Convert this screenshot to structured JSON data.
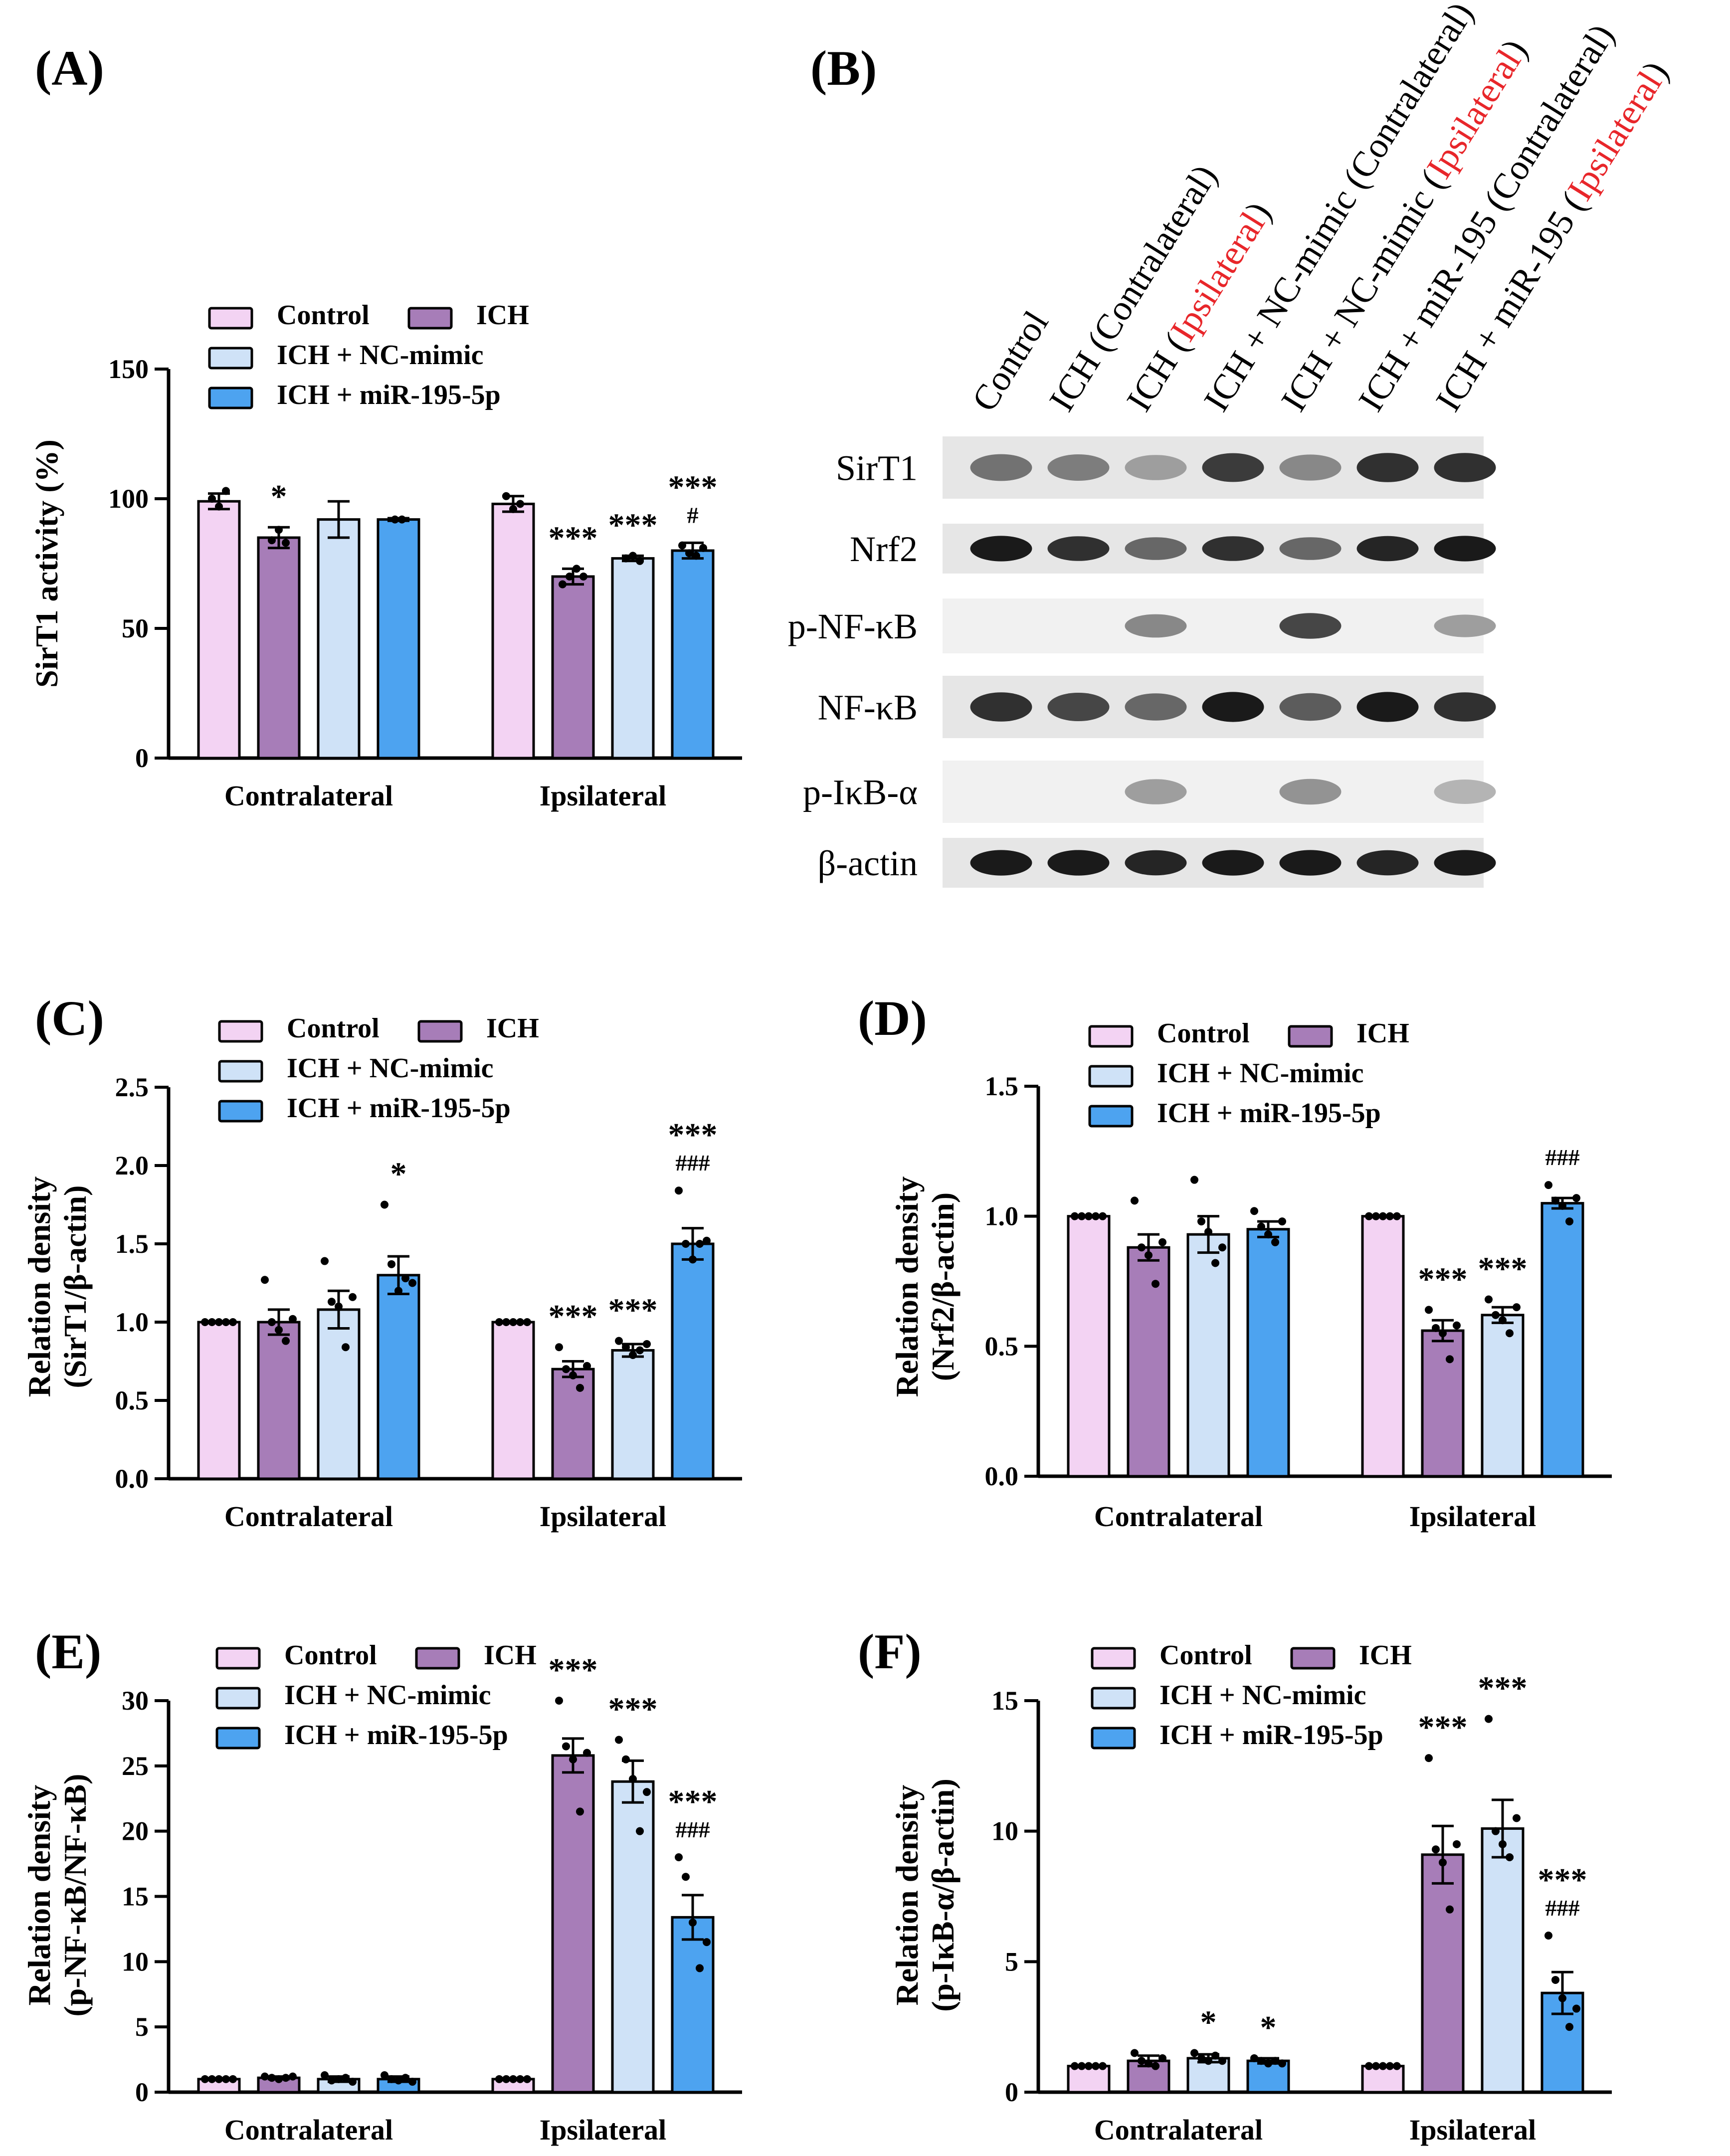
{
  "colors": {
    "control": "#f3d3f3",
    "ich": "#a77db8",
    "nc": "#cfe2f7",
    "mir": "#4da3f0",
    "red": "#e8262a",
    "black": "#000000"
  },
  "legend_labels": [
    "Control",
    "ICH",
    "ICH + NC-mimic",
    "ICH + miR-195-5p"
  ],
  "groups": [
    "Contralateral",
    "Ipsilateral"
  ],
  "chart_data": [
    {
      "panel": "(A)",
      "type": "bar",
      "ylabel": [
        "SirT1 activity (%)"
      ],
      "ylim": [
        0,
        150
      ],
      "yticks": [
        0,
        50,
        100,
        150
      ],
      "yticklabels": [
        "0",
        "50",
        "100",
        "150"
      ],
      "categories": [
        "Contralateral",
        "Ipsilateral"
      ],
      "series": [
        {
          "name": "Control",
          "values": [
            99,
            98
          ],
          "errors": [
            3,
            3
          ]
        },
        {
          "name": "ICH",
          "values": [
            85,
            70
          ],
          "errors": [
            4,
            3
          ]
        },
        {
          "name": "ICH + NC-mimic",
          "values": [
            92,
            77
          ],
          "errors": [
            7,
            1
          ]
        },
        {
          "name": "ICH + miR-195-5p",
          "values": [
            92,
            80
          ],
          "errors": [
            0.5,
            3
          ]
        }
      ],
      "points": [
        [
          [
            100,
            97,
            103
          ],
          [
            101,
            96,
            98
          ]
        ],
        [
          [
            84,
            88,
            83
          ],
          [
            67,
            70,
            73,
            70
          ]
        ],
        [
          [],
          [
            77,
            78,
            76
          ]
        ],
        [
          [
            92,
            92
          ],
          [
            82,
            79,
            78,
            81
          ]
        ]
      ],
      "annotations": [
        {
          "series": 1,
          "group": 0,
          "lines": [
            "*"
          ]
        },
        {
          "series": 1,
          "group": 1,
          "lines": [
            "***"
          ]
        },
        {
          "series": 2,
          "group": 1,
          "lines": [
            "***"
          ]
        },
        {
          "series": 3,
          "group": 1,
          "lines": [
            "***",
            "#"
          ]
        }
      ]
    },
    {
      "panel": "(C)",
      "type": "bar",
      "ylabel": [
        "Relation density",
        "(SirT1/β-actin)"
      ],
      "ylim": [
        0,
        2.5
      ],
      "yticks": [
        0,
        0.5,
        1.0,
        1.5,
        2.0,
        2.5
      ],
      "yticklabels": [
        "0.0",
        "0.5",
        "1.0",
        "1.5",
        "2.0",
        "2.5"
      ],
      "categories": [
        "Contralateral",
        "Ipsilateral"
      ],
      "series": [
        {
          "name": "Control",
          "values": [
            1.0,
            1.0
          ],
          "errors": [
            0,
            0
          ]
        },
        {
          "name": "ICH",
          "values": [
            1.0,
            0.7
          ],
          "errors": [
            0.08,
            0.05
          ]
        },
        {
          "name": "ICH + NC-mimic",
          "values": [
            1.08,
            0.82
          ],
          "errors": [
            0.12,
            0.04
          ]
        },
        {
          "name": "ICH + miR-195-5p",
          "values": [
            1.3,
            1.5
          ],
          "errors": [
            0.12,
            0.1
          ]
        }
      ],
      "points": [
        [
          [
            1,
            1,
            1,
            1,
            1
          ],
          [
            1,
            1,
            1,
            1,
            1
          ]
        ],
        [
          [
            1.27,
            1.0,
            0.95,
            0.88,
            1.02
          ],
          [
            0.84,
            0.7,
            0.66,
            0.58,
            0.72
          ]
        ],
        [
          [
            1.39,
            1.13,
            1.1,
            0.84,
            1.16
          ],
          [
            0.88,
            0.84,
            0.79,
            0.82,
            0.86
          ]
        ],
        [
          [
            1.75,
            1.37,
            1.2,
            1.28,
            1.25
          ],
          [
            1.84,
            1.5,
            1.4,
            1.5,
            1.52
          ]
        ]
      ],
      "annotations": [
        {
          "series": 3,
          "group": 0,
          "lines": [
            "*"
          ]
        },
        {
          "series": 1,
          "group": 1,
          "lines": [
            "***"
          ]
        },
        {
          "series": 2,
          "group": 1,
          "lines": [
            "***"
          ]
        },
        {
          "series": 3,
          "group": 1,
          "lines": [
            "***",
            "###"
          ]
        }
      ]
    },
    {
      "panel": "(D)",
      "type": "bar",
      "ylabel": [
        "Relation density",
        "(Nrf2/β-actin)"
      ],
      "ylim": [
        0,
        1.5
      ],
      "yticks": [
        0,
        0.5,
        1.0,
        1.5
      ],
      "yticklabels": [
        "0.0",
        "0.5",
        "1.0",
        "1.5"
      ],
      "categories": [
        "Contralateral",
        "Ipsilateral"
      ],
      "series": [
        {
          "name": "Control",
          "values": [
            1.0,
            1.0
          ],
          "errors": [
            0,
            0
          ]
        },
        {
          "name": "ICH",
          "values": [
            0.88,
            0.56
          ],
          "errors": [
            0.05,
            0.04
          ]
        },
        {
          "name": "ICH + NC-mimic",
          "values": [
            0.93,
            0.62
          ],
          "errors": [
            0.07,
            0.03
          ]
        },
        {
          "name": "ICH + miR-195-5p",
          "values": [
            0.95,
            1.05
          ],
          "errors": [
            0.03,
            0.02
          ]
        }
      ],
      "points": [
        [
          [
            1,
            1,
            1,
            1,
            1
          ],
          [
            1,
            1,
            1,
            1,
            1
          ]
        ],
        [
          [
            1.06,
            0.88,
            0.85,
            0.74,
            0.9
          ],
          [
            0.64,
            0.57,
            0.55,
            0.45,
            0.58
          ]
        ],
        [
          [
            1.14,
            0.98,
            0.94,
            0.82,
            0.88
          ],
          [
            0.68,
            0.62,
            0.6,
            0.55,
            0.65
          ]
        ],
        [
          [
            1.02,
            0.96,
            0.93,
            0.9,
            0.98
          ],
          [
            1.12,
            1.06,
            1.04,
            0.98,
            1.07
          ]
        ]
      ],
      "annotations": [
        {
          "series": 1,
          "group": 1,
          "lines": [
            "***"
          ]
        },
        {
          "series": 2,
          "group": 1,
          "lines": [
            "***"
          ]
        },
        {
          "series": 3,
          "group": 1,
          "lines": [
            "###"
          ]
        }
      ]
    },
    {
      "panel": "(E)",
      "type": "bar",
      "ylabel": [
        "Relation density",
        "(p-NF-κB/NF-κB)"
      ],
      "ylim": [
        0,
        30
      ],
      "yticks": [
        0,
        5,
        10,
        15,
        20,
        25,
        30
      ],
      "yticklabels": [
        "0",
        "5",
        "10",
        "15",
        "20",
        "25",
        "30"
      ],
      "categories": [
        "Contralateral",
        "Ipsilateral"
      ],
      "series": [
        {
          "name": "Control",
          "values": [
            1.0,
            1.0
          ],
          "errors": [
            0,
            0
          ]
        },
        {
          "name": "ICH",
          "values": [
            1.1,
            25.8
          ],
          "errors": [
            0.1,
            1.3
          ]
        },
        {
          "name": "ICH + NC-mimic",
          "values": [
            1.0,
            23.8
          ],
          "errors": [
            0.2,
            1.6
          ]
        },
        {
          "name": "ICH + miR-195-5p",
          "values": [
            1.0,
            13.4
          ],
          "errors": [
            0.2,
            1.7
          ]
        }
      ],
      "points": [
        [
          [
            1,
            1,
            1,
            1,
            1
          ],
          [
            1,
            1,
            1,
            1,
            1
          ]
        ],
        [
          [
            1.2,
            1.1,
            1.0,
            1.1,
            1.2
          ],
          [
            30.0,
            26.5,
            25.5,
            21.5,
            26.0
          ]
        ],
        [
          [
            1.3,
            0.9,
            1.0,
            1.1,
            0.8
          ],
          [
            27.0,
            25.5,
            24.0,
            20.0,
            23.0
          ]
        ],
        [
          [
            1.3,
            1.0,
            0.9,
            1.1,
            0.8
          ],
          [
            18.0,
            16.5,
            13.0,
            9.5,
            11.5
          ]
        ]
      ],
      "annotations": [
        {
          "series": 1,
          "group": 1,
          "lines": [
            "***"
          ]
        },
        {
          "series": 2,
          "group": 1,
          "lines": [
            "***"
          ]
        },
        {
          "series": 3,
          "group": 1,
          "lines": [
            "***",
            "###"
          ]
        }
      ]
    },
    {
      "panel": "(F)",
      "type": "bar",
      "ylabel": [
        "Relation density",
        "(p-IκB-α/β-actin)"
      ],
      "ylim": [
        0,
        15
      ],
      "yticks": [
        0,
        5,
        10,
        15
      ],
      "yticklabels": [
        "0",
        "5",
        "10",
        "15"
      ],
      "categories": [
        "Contralateral",
        "Ipsilateral"
      ],
      "series": [
        {
          "name": "Control",
          "values": [
            1.0,
            1.0
          ],
          "errors": [
            0,
            0
          ]
        },
        {
          "name": "ICH",
          "values": [
            1.2,
            9.1
          ],
          "errors": [
            0.2,
            1.1
          ]
        },
        {
          "name": "ICH + NC-mimic",
          "values": [
            1.3,
            10.1
          ],
          "errors": [
            0.15,
            1.1
          ]
        },
        {
          "name": "ICH + miR-195-5p",
          "values": [
            1.2,
            3.8
          ],
          "errors": [
            0.1,
            0.8
          ]
        }
      ],
      "points": [
        [
          [
            1,
            1,
            1,
            1,
            1
          ],
          [
            1,
            1,
            1,
            1,
            1
          ]
        ],
        [
          [
            1.5,
            1.2,
            1.1,
            1.0,
            1.3
          ],
          [
            12.8,
            9.3,
            8.8,
            7.0,
            9.5
          ]
        ],
        [
          [
            1.5,
            1.3,
            1.2,
            1.4,
            1.2
          ],
          [
            14.3,
            10.0,
            9.5,
            9.0,
            10.5
          ]
        ],
        [
          [
            1.3,
            1.2,
            1.1,
            1.2,
            1.1
          ],
          [
            6.0,
            4.3,
            3.6,
            2.5,
            3.2
          ]
        ]
      ],
      "annotations": [
        {
          "series": 2,
          "group": 0,
          "lines": [
            "*"
          ]
        },
        {
          "series": 3,
          "group": 0,
          "lines": [
            "*"
          ]
        },
        {
          "series": 1,
          "group": 1,
          "lines": [
            "***"
          ]
        },
        {
          "series": 2,
          "group": 1,
          "lines": [
            "***"
          ]
        },
        {
          "series": 3,
          "group": 1,
          "lines": [
            "***",
            "###"
          ]
        }
      ]
    }
  ],
  "blot": {
    "panel": "(B)",
    "lanes": [
      {
        "label": "Control"
      },
      {
        "label": "ICH (Contralateral)"
      },
      {
        "label": "ICH (",
        "red": "Ipsilateral",
        "tail": ")"
      },
      {
        "label": "ICH + NC-mimic (Contralateral)"
      },
      {
        "label": "ICH + NC-mimic (",
        "red": "Ipsilateral",
        "tail": ")"
      },
      {
        "label": "ICH + miR-195 (Contralateral)"
      },
      {
        "label": "ICH + miR-195 (",
        "red": "Ipsilateral",
        "tail": ")"
      }
    ],
    "rows": [
      {
        "label": "SirT1",
        "intensities": [
          0.55,
          0.5,
          0.35,
          0.8,
          0.45,
          0.85,
          0.85
        ]
      },
      {
        "label": "Nrf2",
        "intensities": [
          0.95,
          0.85,
          0.6,
          0.85,
          0.6,
          0.9,
          0.95
        ]
      },
      {
        "label": "p-NF-κB",
        "intensities": [
          0.0,
          0.0,
          0.45,
          0.0,
          0.75,
          0.0,
          0.35
        ]
      },
      {
        "label": "NF-κB",
        "intensities": [
          0.85,
          0.75,
          0.6,
          0.95,
          0.65,
          0.95,
          0.85
        ]
      },
      {
        "label": "p-IκB-α",
        "intensities": [
          0.0,
          0.0,
          0.35,
          0.0,
          0.4,
          0.0,
          0.25
        ]
      },
      {
        "label": "β-actin",
        "intensities": [
          0.95,
          0.95,
          0.9,
          0.95,
          0.95,
          0.9,
          0.95
        ]
      }
    ]
  }
}
